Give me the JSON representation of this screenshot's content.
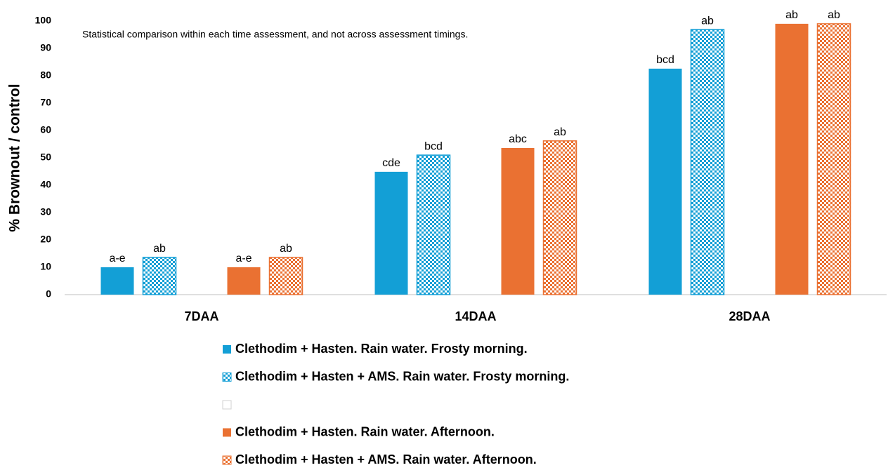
{
  "chart_data": {
    "type": "bar",
    "ylabel": "% Brownout / control",
    "annotation": "Statistical comparison within each time assessment, and not across assessment timings.",
    "categories": [
      "7DAA",
      "14DAA",
      "28DAA"
    ],
    "ylim": [
      0,
      100
    ],
    "yticks": [
      0,
      10,
      20,
      30,
      40,
      50,
      60,
      70,
      80,
      90,
      100
    ],
    "grid": false,
    "series": [
      {
        "name": "Clethodim + Hasten. Rain water. Frosty morning.",
        "color": "#139fd6",
        "pattern": "solid",
        "values": [
          10,
          44.9,
          82.6
        ],
        "value_labels": [
          "a-e",
          "cde",
          "bcd"
        ]
      },
      {
        "name": "Clethodim + Hasten + AMS. Rain water. Frosty morning.",
        "color": "#139fd6",
        "pattern": "checker",
        "values": [
          13.6,
          51.0,
          96.9
        ],
        "value_labels": [
          "ab",
          "bcd",
          "ab"
        ]
      },
      {
        "name": null,
        "color": "#ffffff",
        "pattern": "solid",
        "values": [
          null,
          null,
          null
        ]
      },
      {
        "name": "Clethodim + Hasten. Rain water. Afternoon.",
        "color": "#ea7132",
        "pattern": "solid",
        "values": [
          10,
          53.6,
          99.0
        ],
        "value_labels": [
          "a-e",
          "abc",
          "ab"
        ]
      },
      {
        "name": "Clethodim + Hasten + AMS. Rain water. Afternoon.",
        "color": "#ea7132",
        "pattern": "checker",
        "values": [
          13.6,
          56.2,
          99.0
        ],
        "value_labels": [
          "ab",
          "ab",
          "ab"
        ]
      }
    ]
  }
}
